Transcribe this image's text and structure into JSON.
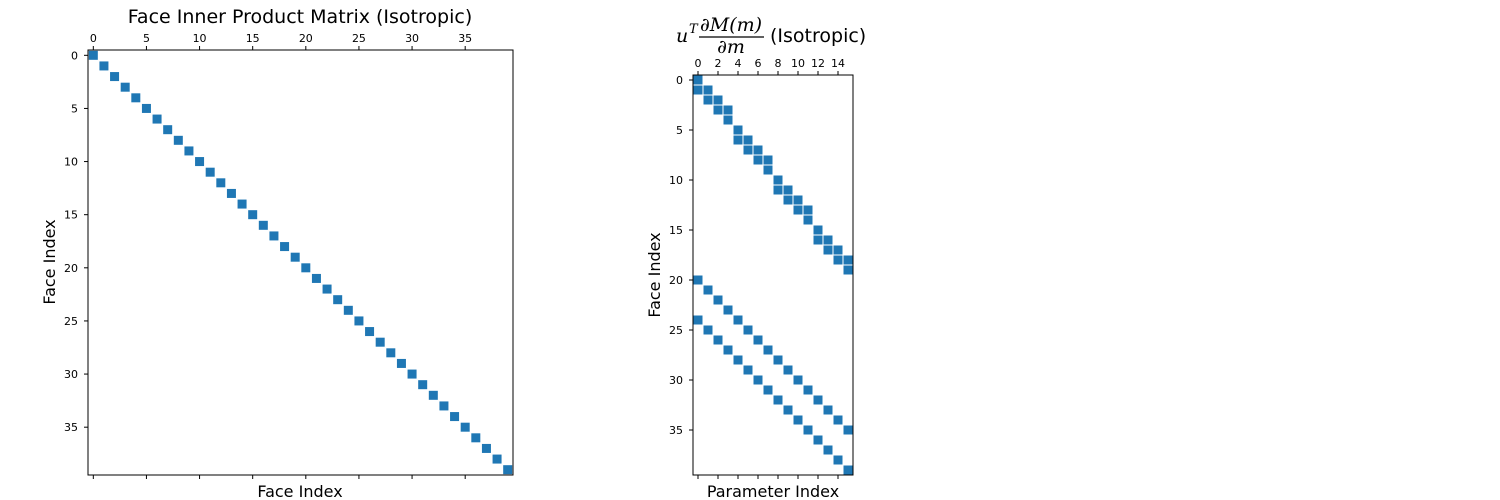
{
  "chart_data": [
    {
      "type": "heatmap",
      "style": "spy",
      "title": "Face Inner Product Matrix (Isotropic)",
      "xlabel": "Face Index",
      "ylabel": "Face Index",
      "n_rows": 40,
      "n_cols": 40,
      "xticks": [
        0,
        5,
        10,
        15,
        20,
        25,
        30,
        35
      ],
      "yticks": [
        0,
        5,
        10,
        15,
        20,
        25,
        30,
        35
      ],
      "marker_color": "#1f77b4",
      "nonzeros": [
        [
          0,
          0
        ],
        [
          1,
          1
        ],
        [
          2,
          2
        ],
        [
          3,
          3
        ],
        [
          4,
          4
        ],
        [
          5,
          5
        ],
        [
          6,
          6
        ],
        [
          7,
          7
        ],
        [
          8,
          8
        ],
        [
          9,
          9
        ],
        [
          10,
          10
        ],
        [
          11,
          11
        ],
        [
          12,
          12
        ],
        [
          13,
          13
        ],
        [
          14,
          14
        ],
        [
          15,
          15
        ],
        [
          16,
          16
        ],
        [
          17,
          17
        ],
        [
          18,
          18
        ],
        [
          19,
          19
        ],
        [
          20,
          20
        ],
        [
          21,
          21
        ],
        [
          22,
          22
        ],
        [
          23,
          23
        ],
        [
          24,
          24
        ],
        [
          25,
          25
        ],
        [
          26,
          26
        ],
        [
          27,
          27
        ],
        [
          28,
          28
        ],
        [
          29,
          29
        ],
        [
          30,
          30
        ],
        [
          31,
          31
        ],
        [
          32,
          32
        ],
        [
          33,
          33
        ],
        [
          34,
          34
        ],
        [
          35,
          35
        ],
        [
          36,
          36
        ],
        [
          37,
          37
        ],
        [
          38,
          38
        ],
        [
          39,
          39
        ]
      ]
    },
    {
      "type": "heatmap",
      "style": "spy",
      "title_math": {
        "base": "u",
        "sup": "T",
        "numerator": "∂M(m)",
        "denominator": "∂m"
      },
      "title_suffix": "(Isotropic)",
      "xlabel": "Parameter Index",
      "ylabel": "Face Index",
      "n_rows": 40,
      "n_cols": 16,
      "xticks": [
        0,
        2,
        4,
        6,
        8,
        10,
        12,
        14
      ],
      "yticks": [
        0,
        5,
        10,
        15,
        20,
        25,
        30,
        35
      ],
      "marker_color": "#1f77b4",
      "nonzeros": [
        [
          0,
          0
        ],
        [
          1,
          0
        ],
        [
          1,
          1
        ],
        [
          2,
          1
        ],
        [
          2,
          2
        ],
        [
          3,
          2
        ],
        [
          3,
          3
        ],
        [
          4,
          3
        ],
        [
          5,
          4
        ],
        [
          6,
          4
        ],
        [
          6,
          5
        ],
        [
          7,
          5
        ],
        [
          7,
          6
        ],
        [
          8,
          6
        ],
        [
          8,
          7
        ],
        [
          9,
          7
        ],
        [
          10,
          8
        ],
        [
          11,
          8
        ],
        [
          11,
          9
        ],
        [
          12,
          9
        ],
        [
          12,
          10
        ],
        [
          13,
          10
        ],
        [
          13,
          11
        ],
        [
          14,
          11
        ],
        [
          15,
          12
        ],
        [
          16,
          12
        ],
        [
          16,
          13
        ],
        [
          17,
          13
        ],
        [
          17,
          14
        ],
        [
          18,
          14
        ],
        [
          18,
          15
        ],
        [
          19,
          15
        ],
        [
          20,
          0
        ],
        [
          21,
          1
        ],
        [
          22,
          2
        ],
        [
          23,
          3
        ],
        [
          24,
          0
        ],
        [
          24,
          4
        ],
        [
          25,
          1
        ],
        [
          25,
          5
        ],
        [
          26,
          2
        ],
        [
          26,
          6
        ],
        [
          27,
          3
        ],
        [
          27,
          7
        ],
        [
          28,
          4
        ],
        [
          28,
          8
        ],
        [
          29,
          5
        ],
        [
          29,
          9
        ],
        [
          30,
          6
        ],
        [
          30,
          10
        ],
        [
          31,
          7
        ],
        [
          31,
          11
        ],
        [
          32,
          8
        ],
        [
          32,
          12
        ],
        [
          33,
          9
        ],
        [
          33,
          13
        ],
        [
          34,
          10
        ],
        [
          34,
          14
        ],
        [
          35,
          11
        ],
        [
          35,
          15
        ],
        [
          36,
          12
        ],
        [
          37,
          13
        ],
        [
          38,
          14
        ],
        [
          39,
          15
        ]
      ]
    }
  ]
}
